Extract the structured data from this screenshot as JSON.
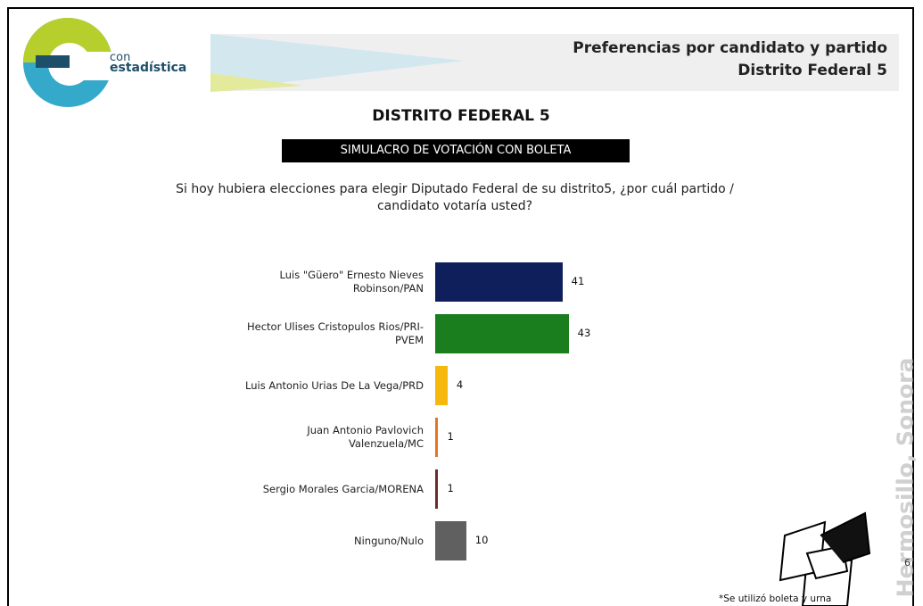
{
  "header": {
    "title_line1": "Preferencias por candidato y partido",
    "title_line2": "Distrito Federal 5"
  },
  "logo": {
    "small": "con",
    "name": "estadística"
  },
  "side_text": "Hermosillo, Sonora",
  "page_number": "6",
  "footnote": "*Se utilizó boleta y urna",
  "chart_data": {
    "type": "bar",
    "orientation": "horizontal",
    "title": "DISTRITO FEDERAL 5",
    "subtitle": "SIMULACRO DE VOTACIÓN CON BOLETA",
    "question": "Si hoy hubiera elecciones para elegir Diputado Federal de su distrito5, ¿por cuál partido / candidato votaría usted?",
    "categories": [
      "Luis \"Güero\" Ernesto Nieves Robinson/PAN",
      "Hector Ulises Cristopulos Rios/PRI-PVEM",
      "Luis Antonio Urias De La Vega/PRD",
      "Juan Antonio Pavlovich Valenzuela/MC",
      "Sergio Morales Garcia/MORENA",
      "Ninguno/Nulo"
    ],
    "values": [
      41,
      43,
      4,
      1,
      1,
      10
    ],
    "colors": [
      "#0f1f5c",
      "#1a7d1e",
      "#f6b80c",
      "#e5761f",
      "#6a2c2c",
      "#606060"
    ]
  }
}
